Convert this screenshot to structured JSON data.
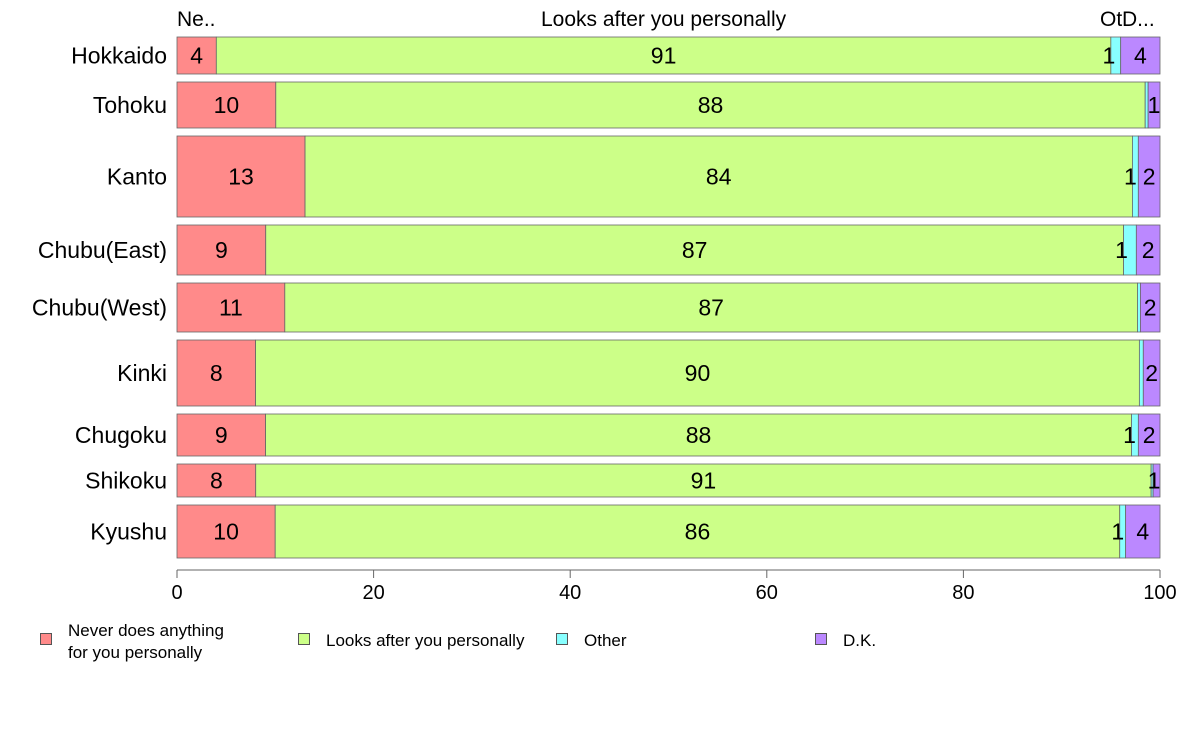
{
  "chart_data": {
    "type": "bar",
    "orientation": "horizontal",
    "stacked": true,
    "categories": [
      "Hokkaido",
      "Tohoku",
      "Kanto",
      "Chubu(East)",
      "Chubu(West)",
      "Kinki",
      "Chugoku",
      "Shikoku",
      "Kyushu"
    ],
    "series": [
      {
        "name": "Never does anything for you personally",
        "values": [
          4,
          10,
          13,
          9,
          11,
          8,
          9,
          8,
          10
        ],
        "color": "#ff8a8a"
      },
      {
        "name": "Looks after you personally",
        "values": [
          91,
          88,
          84,
          87,
          87,
          90,
          88,
          91,
          86
        ],
        "color": "#ccff88"
      },
      {
        "name": "Other",
        "values": [
          1,
          0.3,
          0.6,
          1.3,
          0.3,
          0.4,
          0.7,
          0.2,
          0.6
        ],
        "color": "#88ffff"
      },
      {
        "name": "D.K.",
        "values": [
          4,
          1.2,
          2.2,
          2.4,
          2,
          1.7,
          2.2,
          0.7,
          3.5
        ],
        "color": "#bb88ff"
      }
    ],
    "bar_labels": [
      [
        "4",
        "91",
        "1",
        "4"
      ],
      [
        "10",
        "88",
        "",
        "1"
      ],
      [
        "13",
        "84",
        "1",
        "2"
      ],
      [
        "9",
        "87",
        "1",
        "2"
      ],
      [
        "11",
        "87",
        "",
        "2"
      ],
      [
        "8",
        "90",
        "",
        "2"
      ],
      [
        "9",
        "88",
        "1",
        "2"
      ],
      [
        "8",
        "91",
        "",
        "1"
      ],
      [
        "10",
        "86",
        "1",
        "4"
      ]
    ],
    "top_labels": [
      "Ne..",
      "Looks after you personally",
      "Ot",
      "D..."
    ],
    "xlim": [
      0,
      100
    ],
    "xticks": [
      0,
      20,
      40,
      60,
      80,
      100
    ],
    "grid": false,
    "legend_position": "bottom",
    "legend_labels": [
      "Never does anything\nfor you personally",
      "Looks after you personally",
      "Other",
      "D.K."
    ]
  }
}
